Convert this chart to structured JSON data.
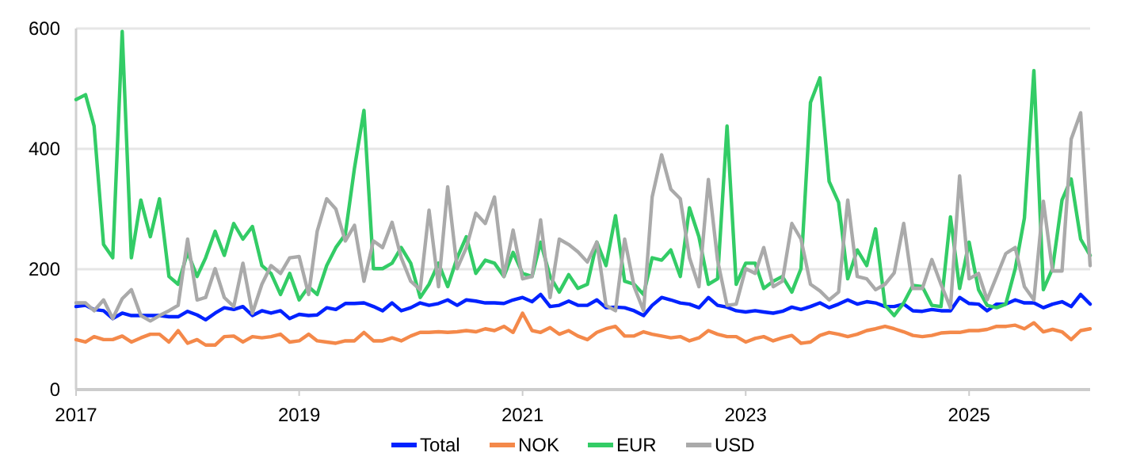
{
  "chart_data": {
    "type": "line",
    "x": [
      "2017-01",
      "2017-02",
      "2017-03",
      "2017-04",
      "2017-05",
      "2017-06",
      "2017-07",
      "2017-08",
      "2017-09",
      "2017-10",
      "2017-11",
      "2017-12",
      "2018-01",
      "2018-02",
      "2018-03",
      "2018-04",
      "2018-05",
      "2018-06",
      "2018-07",
      "2018-08",
      "2018-09",
      "2018-10",
      "2018-11",
      "2018-12",
      "2019-01",
      "2019-02",
      "2019-03",
      "2019-04",
      "2019-05",
      "2019-06",
      "2019-07",
      "2019-08",
      "2019-09",
      "2019-10",
      "2019-11",
      "2019-12",
      "2020-01",
      "2020-02",
      "2020-03",
      "2020-04",
      "2020-05",
      "2020-06",
      "2020-07",
      "2020-08",
      "2020-09",
      "2020-10",
      "2020-11",
      "2020-12",
      "2021-01",
      "2021-02",
      "2021-03",
      "2021-04",
      "2021-05",
      "2021-06",
      "2021-07",
      "2021-08",
      "2021-09",
      "2021-10",
      "2021-11",
      "2021-12",
      "2022-01",
      "2022-02",
      "2022-03",
      "2022-04",
      "2022-05",
      "2022-06",
      "2022-07",
      "2022-08",
      "2022-09",
      "2022-10",
      "2022-11",
      "2022-12",
      "2023-01",
      "2023-02",
      "2023-03",
      "2023-04",
      "2023-05",
      "2023-06",
      "2023-07",
      "2023-08",
      "2023-09",
      "2023-10",
      "2023-11",
      "2023-12",
      "2024-01",
      "2024-02",
      "2024-03",
      "2024-04",
      "2024-05",
      "2024-06",
      "2024-07",
      "2024-08",
      "2024-09",
      "2024-10",
      "2024-11",
      "2024-12",
      "2025-01",
      "2025-02",
      "2025-03",
      "2025-04",
      "2025-05",
      "2025-06",
      "2025-07",
      "2025-08",
      "2025-09",
      "2025-10",
      "2025-11",
      "2025-12",
      "2026-01",
      "2026-02"
    ],
    "series": [
      {
        "name": "Total",
        "color": "#0022ff",
        "values": [
          138,
          140,
          133,
          131,
          118,
          127,
          123,
          123,
          123,
          123,
          121,
          121,
          130,
          124,
          116,
          127,
          136,
          133,
          138,
          123,
          131,
          127,
          131,
          118,
          125,
          123,
          124,
          136,
          133,
          143,
          143,
          144,
          138,
          131,
          144,
          131,
          136,
          144,
          140,
          143,
          149,
          140,
          149,
          147,
          144,
          144,
          143,
          149,
          153,
          146,
          158,
          138,
          140,
          147,
          140,
          140,
          149,
          136,
          137,
          136,
          131,
          123,
          140,
          153,
          149,
          144,
          142,
          136,
          153,
          140,
          137,
          131,
          129,
          131,
          129,
          127,
          130,
          137,
          133,
          138,
          144,
          136,
          142,
          149,
          142,
          146,
          144,
          138,
          138,
          142,
          131,
          130,
          133,
          131,
          131,
          153,
          143,
          142,
          131,
          142,
          142,
          149,
          144,
          144,
          136,
          142,
          146,
          138,
          158,
          142
        ]
      },
      {
        "name": "NOK",
        "color": "#f4894a",
        "values": [
          83,
          79,
          88,
          83,
          83,
          89,
          79,
          86,
          92,
          92,
          79,
          98,
          77,
          83,
          74,
          74,
          88,
          89,
          79,
          88,
          86,
          88,
          92,
          79,
          81,
          92,
          81,
          79,
          77,
          81,
          81,
          95,
          81,
          81,
          86,
          81,
          89,
          95,
          95,
          96,
          95,
          96,
          98,
          96,
          101,
          98,
          105,
          95,
          127,
          98,
          95,
          103,
          92,
          98,
          89,
          83,
          95,
          101,
          105,
          89,
          89,
          96,
          92,
          89,
          86,
          88,
          81,
          86,
          98,
          92,
          88,
          88,
          79,
          85,
          88,
          81,
          86,
          90,
          77,
          79,
          90,
          95,
          92,
          88,
          92,
          98,
          101,
          105,
          101,
          96,
          90,
          88,
          90,
          94,
          95,
          95,
          98,
          98,
          100,
          105,
          105,
          107,
          101,
          111,
          96,
          100,
          96,
          83,
          98,
          101
        ]
      },
      {
        "name": "EUR",
        "color": "#33cc66",
        "values": [
          482,
          490,
          438,
          241,
          219,
          595,
          219,
          315,
          254,
          317,
          188,
          175,
          228,
          188,
          219,
          263,
          223,
          276,
          250,
          271,
          206,
          193,
          158,
          193,
          149,
          171,
          158,
          206,
          236,
          258,
          368,
          464,
          201,
          201,
          210,
          236,
          210,
          153,
          175,
          210,
          171,
          219,
          254,
          193,
          215,
          210,
          188,
          228,
          193,
          188,
          245,
          188,
          162,
          191,
          168,
          175,
          245,
          206,
          289,
          180,
          175,
          158,
          219,
          215,
          232,
          188,
          302,
          254,
          175,
          184,
          438,
          175,
          210,
          210,
          168,
          180,
          188,
          162,
          201,
          477,
          518,
          346,
          311,
          184,
          232,
          206,
          267,
          140,
          123,
          144,
          173,
          171,
          140,
          138,
          287,
          168,
          245,
          166,
          140,
          136,
          142,
          201,
          285,
          530,
          166,
          201,
          315,
          350,
          250,
          223
        ]
      },
      {
        "name": "USD",
        "color": "#aaaaaa",
        "values": [
          144,
          144,
          131,
          149,
          118,
          151,
          166,
          123,
          114,
          123,
          131,
          140,
          250,
          149,
          153,
          201,
          153,
          138,
          210,
          127,
          175,
          206,
          193,
          219,
          221,
          158,
          263,
          317,
          300,
          247,
          273,
          180,
          247,
          236,
          278,
          219,
          180,
          166,
          298,
          171,
          337,
          201,
          236,
          293,
          276,
          320,
          188,
          265,
          184,
          188,
          282,
          153,
          250,
          241,
          229,
          212,
          245,
          140,
          131,
          250,
          171,
          131,
          320,
          390,
          333,
          317,
          219,
          171,
          349,
          215,
          140,
          142,
          201,
          193,
          236,
          171,
          180,
          276,
          250,
          175,
          164,
          149,
          162,
          315,
          188,
          184,
          166,
          175,
          194,
          276,
          168,
          168,
          216,
          175,
          136,
          355,
          184,
          193,
          149,
          188,
          226,
          236,
          171,
          149,
          313,
          197,
          197,
          416,
          460,
          206
        ]
      }
    ],
    "xlim": [
      "2017-01",
      "2026-02"
    ],
    "xticks": [
      "2017",
      "2019",
      "2021",
      "2023",
      "2025"
    ],
    "ylim": [
      0,
      600
    ],
    "yticks": [
      0,
      200,
      400,
      600
    ],
    "grid": "y",
    "legend": "bottom",
    "marker": "none",
    "line_style": "solid"
  }
}
